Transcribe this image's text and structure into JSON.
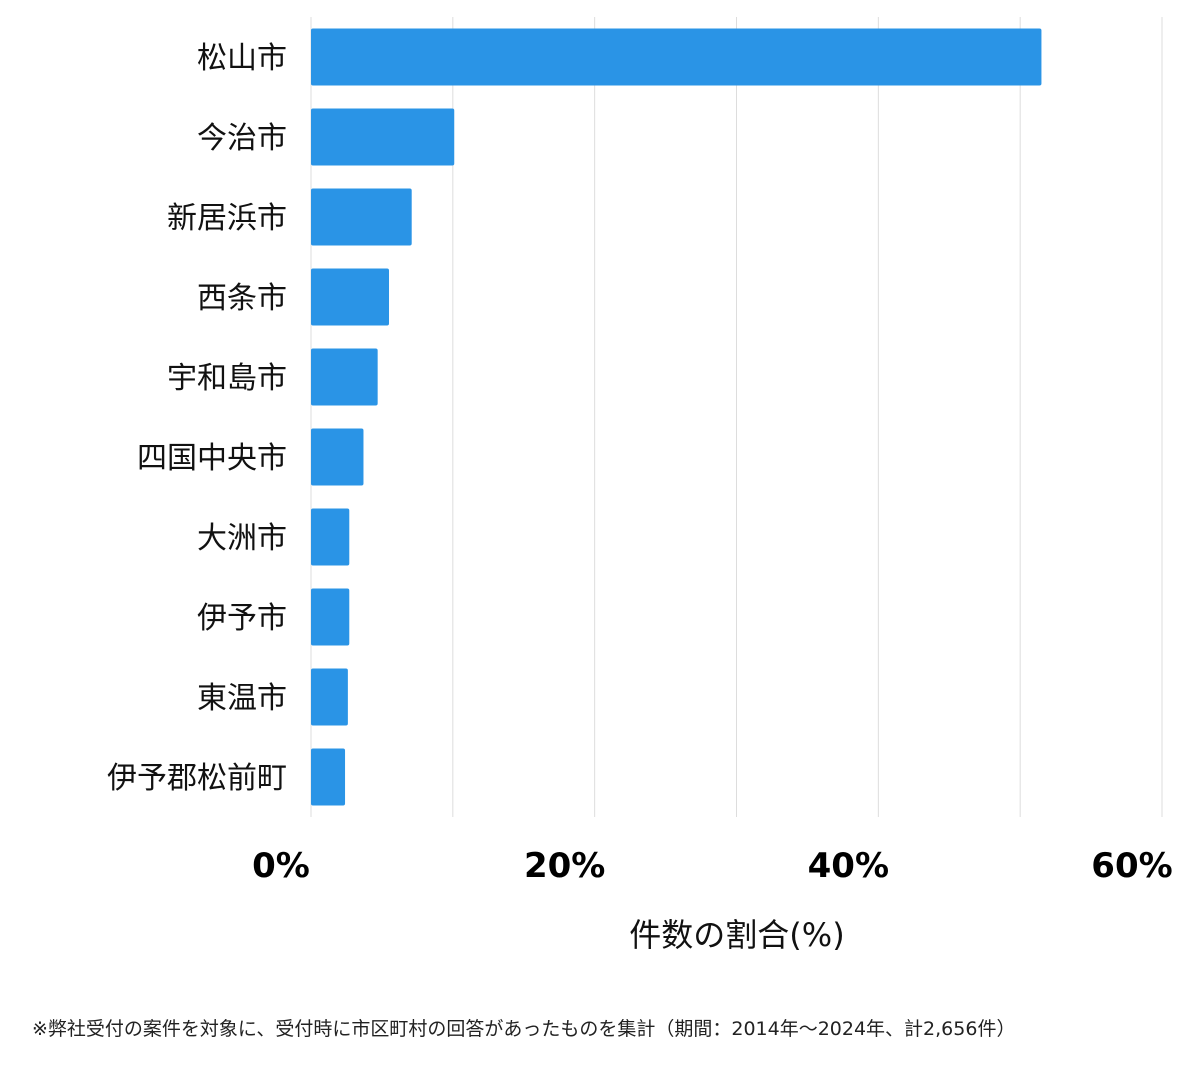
{
  "chart_data": {
    "type": "bar",
    "orientation": "horizontal",
    "categories": [
      "松山市",
      "今治市",
      "新居浜市",
      "西条市",
      "宇和島市",
      "四国中央市",
      "大洲市",
      "伊予市",
      "東温市",
      "伊予郡松前町"
    ],
    "values": [
      51.5,
      10.1,
      7.1,
      5.5,
      4.7,
      3.7,
      2.7,
      2.7,
      2.6,
      2.4
    ],
    "xlabel": "件数の割合(%)",
    "ylabel": "",
    "xlim": [
      0,
      60
    ],
    "xticks": [
      0,
      20,
      40,
      60
    ],
    "tick_labels": [
      "0%",
      "20%",
      "40%",
      "60%"
    ],
    "grid": true,
    "bar_color": "#2a94e6",
    "grid_color": "#dddddd"
  },
  "footnote": "※弊社受付の案件を対象に、受付時に市区町村の回答があったものを集計（期間：2014年～2024年、計2,656件）"
}
